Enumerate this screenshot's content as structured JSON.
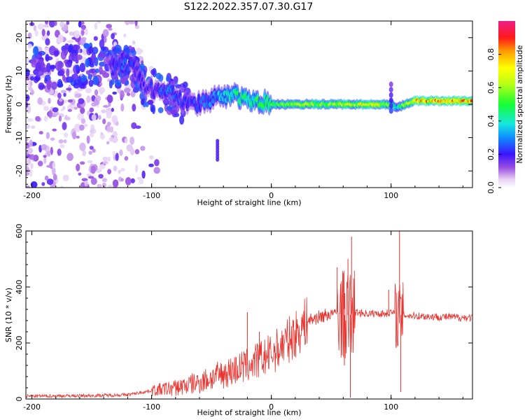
{
  "title": "S122.2022.357.07.30.G17",
  "colors": {
    "signal": "#e8332e",
    "axis": "#000000",
    "background": "#ffffff"
  },
  "chart_data": [
    {
      "type": "heatmap",
      "title": "S122.2022.357.07.30.G17",
      "xlabel": "Height of straight line (km)",
      "ylabel": "Frequency (Hz)",
      "xlim": [
        -205,
        168
      ],
      "ylim": [
        -25,
        25
      ],
      "xticks": [
        -200,
        -100,
        0,
        100
      ],
      "yticks": [
        -20,
        -10,
        0,
        10,
        20
      ],
      "colorbar": {
        "label": "Normalized spectral amplitude",
        "range": [
          0,
          1
        ],
        "ticks": [
          0.0,
          0.2,
          0.4,
          0.6,
          0.8
        ],
        "colormap": "white-purple-blue-cyan-green-yellow-orange-red-magenta"
      },
      "ridge": {
        "x": [
          -135,
          -125,
          -115,
          -105,
          -95,
          -85,
          -75,
          -65,
          -55,
          -45,
          -35,
          -25,
          -15,
          -5,
          0,
          10,
          30,
          50,
          60,
          70,
          80,
          90,
          100,
          105,
          120,
          140,
          168
        ],
        "freq_hz": [
          12,
          12,
          11,
          5,
          4,
          4,
          1,
          0,
          1,
          2,
          3,
          2,
          1,
          1,
          0,
          0,
          0,
          0,
          0,
          0,
          0,
          0,
          0,
          -1,
          1,
          1,
          1
        ],
        "amplitude": [
          0.25,
          0.35,
          0.3,
          0.25,
          0.3,
          0.35,
          0.3,
          0.3,
          0.35,
          0.4,
          0.5,
          0.55,
          0.55,
          0.6,
          0.6,
          0.65,
          0.7,
          0.7,
          0.75,
          0.7,
          0.8,
          0.75,
          0.6,
          0.5,
          0.85,
          0.9,
          0.9
        ]
      }
    },
    {
      "type": "line",
      "xlabel": "Height of straight line (km)",
      "ylabel": "SNR (10 * v/v)",
      "xlim": [
        -205,
        168
      ],
      "ylim": [
        0,
        600
      ],
      "xticks": [
        -200,
        -100,
        0,
        100
      ],
      "yticks": [
        0,
        200,
        400,
        600
      ],
      "series": [
        {
          "name": "SNR",
          "envelope_x": [
            -205,
            -150,
            -120,
            -100,
            -80,
            -60,
            -40,
            -20,
            0,
            20,
            30,
            50,
            55,
            60,
            65,
            70,
            80,
            95,
            100,
            105,
            110,
            130,
            168
          ],
          "envelope_y": [
            10,
            12,
            15,
            30,
            40,
            60,
            90,
            120,
            160,
            230,
            280,
            305,
            310,
            300,
            300,
            310,
            305,
            305,
            310,
            300,
            300,
            295,
            290
          ],
          "spikes": [
            {
              "x": -20,
              "y": 310
            },
            {
              "x": -10,
              "y": 240
            },
            {
              "x": 55,
              "y": 470
            },
            {
              "x": 60,
              "y": 450
            },
            {
              "x": 64,
              "y": 500
            },
            {
              "x": 67,
              "y": 580
            },
            {
              "x": 66,
              "y": 5
            },
            {
              "x": 61,
              "y": 120
            },
            {
              "x": 98,
              "y": 390
            },
            {
              "x": 107,
              "y": 610
            },
            {
              "x": 108,
              "y": 25
            },
            {
              "x": 110,
              "y": 360
            }
          ]
        }
      ]
    }
  ]
}
